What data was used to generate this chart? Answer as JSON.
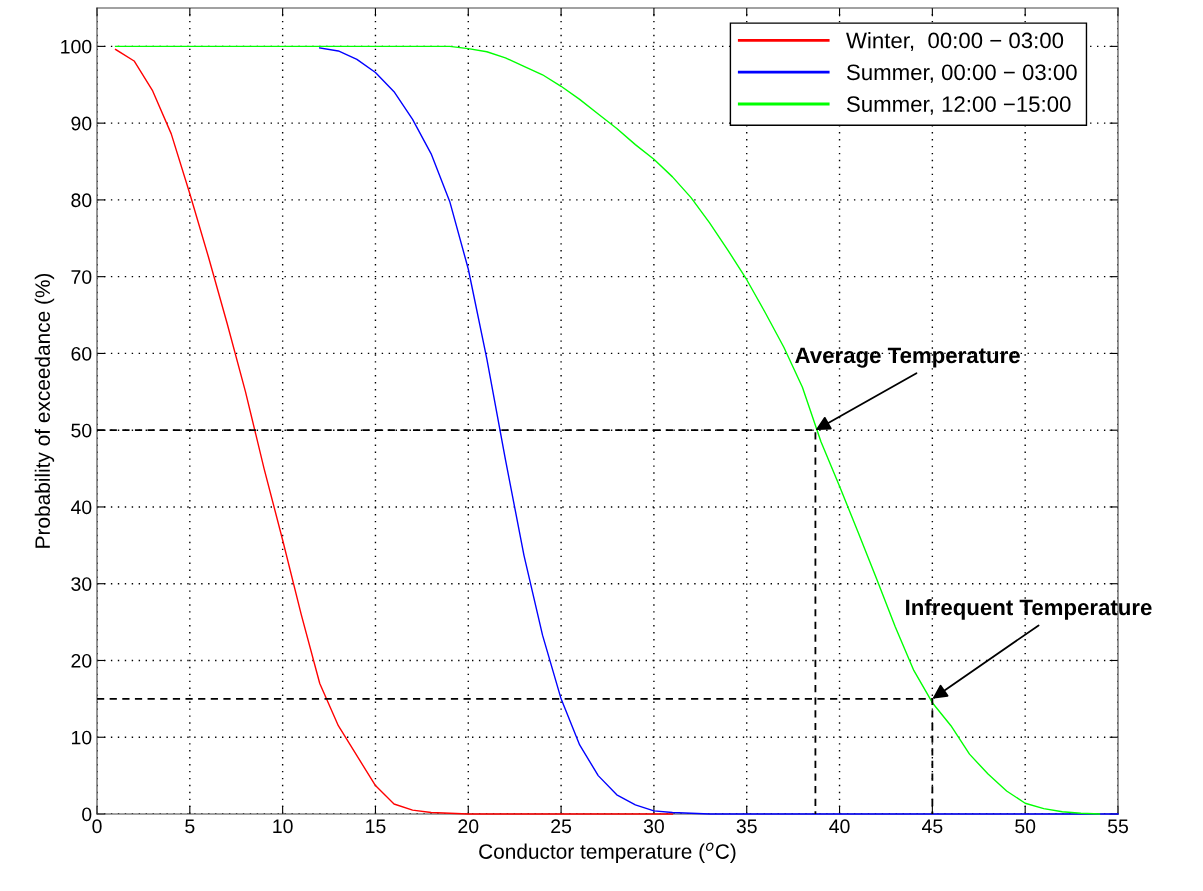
{
  "chart_data": {
    "type": "line",
    "xlabel": "Conductor temperature ($^{o}$C)",
    "ylabel": "Probability of exceedance (%)",
    "x": [
      1,
      2,
      3,
      4,
      5,
      6,
      7,
      8,
      9,
      10,
      11,
      12,
      13,
      14,
      15,
      16,
      17,
      18,
      19,
      20,
      21,
      22,
      23,
      24,
      25,
      26,
      27,
      28,
      29,
      30,
      31,
      32,
      33,
      34,
      35,
      36,
      37,
      38,
      39,
      40,
      41,
      42,
      43,
      44,
      45,
      46,
      47,
      48,
      49,
      50,
      51,
      52,
      53,
      54,
      55
    ],
    "series": [
      {
        "name": "Winter,  00:00 − 03:00",
        "color": "#ff0000",
        "values": [
          99.6,
          98.1,
          94.2,
          88.6,
          80.8,
          72.6,
          64,
          55,
          45,
          35.7,
          26,
          17,
          11.5,
          7.6,
          3.7,
          1.3,
          0.5,
          0.2,
          0.1,
          0,
          0,
          0,
          0,
          0,
          0,
          0,
          0,
          0,
          0,
          0,
          0,
          null,
          null,
          null,
          null,
          null,
          null,
          null,
          null,
          null,
          null,
          null,
          null,
          null,
          null,
          null,
          null,
          null,
          null,
          null,
          null,
          null,
          null,
          null,
          null
        ]
      },
      {
        "name": "Summer, 00:00 − 03:00",
        "color": "#0000ff",
        "values": [
          null,
          null,
          null,
          null,
          null,
          null,
          null,
          null,
          null,
          null,
          null,
          99.8,
          99.4,
          98.3,
          96.6,
          94.1,
          90.5,
          86,
          79.8,
          71,
          59.3,
          46.2,
          33.7,
          23.3,
          15,
          9,
          5,
          2.5,
          1.2,
          0.4,
          0.2,
          0.1,
          0,
          0,
          0,
          0,
          0,
          0,
          0,
          0,
          0,
          0,
          0,
          0,
          0,
          0,
          0,
          0,
          0,
          0,
          0,
          0,
          0,
          0,
          0
        ]
      },
      {
        "name": "Summer, 12:00 −15:00",
        "color": "#00ff00",
        "values": [
          100,
          100,
          100,
          100,
          100,
          100,
          100,
          100,
          100,
          100,
          100,
          100,
          100,
          100,
          100,
          100,
          100,
          100,
          100,
          99.7,
          99.3,
          98.5,
          97.4,
          96.3,
          94.8,
          93.1,
          91.2,
          89.3,
          87.2,
          85.3,
          83,
          80.3,
          77,
          73.4,
          69.6,
          65.3,
          60.8,
          55.6,
          48.5,
          42.7,
          36.7,
          30.6,
          24.4,
          18.7,
          14.5,
          11.5,
          7.8,
          5.2,
          3,
          1.4,
          0.7,
          0.3,
          0.1,
          0,
          null
        ]
      },
      {
        "type": "line",
        "color": "#000000",
        "line_style": "dashed",
        "x": [
          0,
          38.7,
          38.7
        ],
        "values": [
          50,
          50,
          0
        ]
      },
      {
        "type": "line",
        "color": "#000000",
        "line_style": "dashed",
        "x": [
          0,
          45,
          45
        ],
        "values": [
          15,
          15,
          0
        ]
      }
    ],
    "annotations": [
      {
        "text": "Average Temperature",
        "x": 38.7,
        "y": 50
      },
      {
        "text": "Infrequent Temperature",
        "x": 45,
        "y": 15
      }
    ],
    "xlim": [
      0,
      55
    ],
    "xticks": [
      0,
      5,
      10,
      15,
      20,
      25,
      30,
      35,
      40,
      45,
      50,
      55
    ],
    "ylim": [
      0,
      105
    ],
    "yticks": [
      0,
      10,
      20,
      30,
      40,
      50,
      60,
      70,
      80,
      90,
      100
    ],
    "grid": true,
    "legend": "top right",
    "line_style": "solid"
  }
}
